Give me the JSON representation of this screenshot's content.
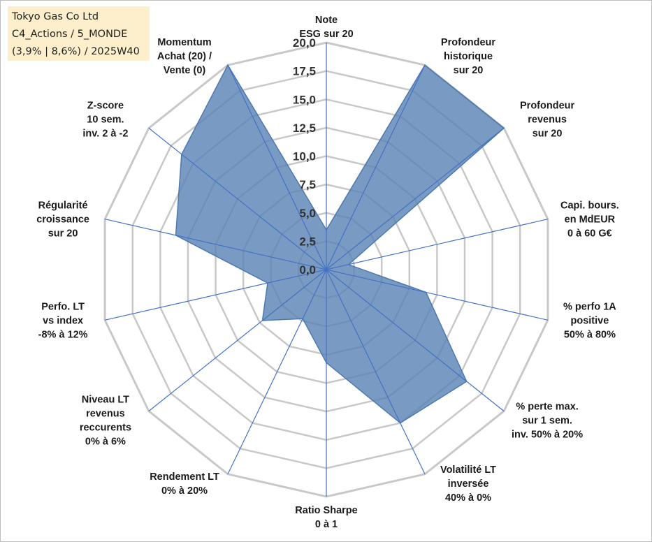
{
  "info": {
    "line1": "Tokyo Gas Co Ltd",
    "line2": "C4_Actions / 5_MONDE",
    "line3": "(3,9% | 8,6%) / 2025W40"
  },
  "chart_data": {
    "type": "radar",
    "title": "Tokyo Gas Co Ltd",
    "rlim": [
      0,
      20
    ],
    "ticks": [
      "0,0",
      "2,5",
      "5,0",
      "7,5",
      "10,0",
      "12,5",
      "15,0",
      "17,5",
      "20,0"
    ],
    "grid": true,
    "axes": [
      {
        "label": [
          "Note",
          "ESG sur 20"
        ],
        "value": 3.5
      },
      {
        "label": [
          "Profondeur",
          "historique",
          "sur 20"
        ],
        "value": 20
      },
      {
        "label": [
          "Profondeur",
          "revenus",
          "sur 20"
        ],
        "value": 20
      },
      {
        "label": [
          "Capi. bours.",
          "en MdEUR",
          "0 à 60 G€"
        ],
        "value": 2.0
      },
      {
        "label": [
          "% perfo 1A",
          "positive",
          "50% à 80%"
        ],
        "value": 9.0
      },
      {
        "label": [
          "% perte max.",
          "sur 1 sem.",
          "inv. 50% à 20%"
        ],
        "value": 15.8
      },
      {
        "label": [
          "Volatilité LT",
          "inversée",
          "40% à 0%"
        ],
        "value": 15.0
      },
      {
        "label": [
          "Ratio Sharpe",
          "0 à 1"
        ],
        "value": 8.2
      },
      {
        "label": [
          "Rendement LT",
          "0% à 20%"
        ],
        "value": 4.8
      },
      {
        "label": [
          "Niveau LT",
          "revenus",
          "reccurents",
          "0% à 6%"
        ],
        "value": 7.2
      },
      {
        "label": [
          "Perfo. LT",
          "vs index",
          "-8% à 12%"
        ],
        "value": 5.3
      },
      {
        "label": [
          "Régularité",
          "croissance",
          "sur 20"
        ],
        "value": 13.6
      },
      {
        "label": [
          "Z-score",
          "10 sem.",
          "inv. 2 à -2"
        ],
        "value": 16.3
      },
      {
        "label": [
          "Momentum",
          "Achat (20) /",
          "Vente (0)"
        ],
        "value": 20
      }
    ],
    "colors": {
      "fill": "#5b84b5",
      "stroke": "#4d79ad",
      "grid": "#c8c8c8",
      "spoke": "#4472c4"
    }
  }
}
